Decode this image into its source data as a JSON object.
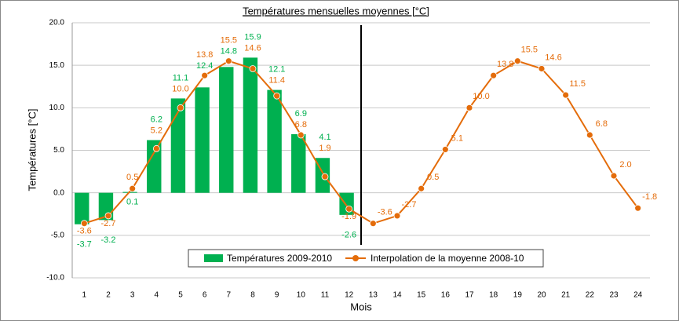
{
  "chart_data": {
    "type": "bar-line",
    "title": "Températures mensuelles moyennes [°C]",
    "y_label": "Températures [°C]",
    "x_label": "Mois",
    "categories": [
      "1",
      "2",
      "3",
      "4",
      "5",
      "6",
      "7",
      "8",
      "9",
      "10",
      "11",
      "12",
      "13",
      "14",
      "15",
      "16",
      "17",
      "18",
      "19",
      "20",
      "21",
      "22",
      "23",
      "24"
    ],
    "series": [
      {
        "name": "Températures 2009-2010",
        "type": "bar",
        "color": "#00b050",
        "values": [
          -3.7,
          -3.2,
          0.1,
          6.2,
          11.1,
          12.4,
          14.8,
          15.9,
          12.1,
          6.9,
          4.1,
          -2.6,
          null,
          null,
          null,
          null,
          null,
          null,
          null,
          null,
          null,
          null,
          null,
          null
        ],
        "value_labels": [
          "-3.7",
          "-3.2",
          "0.1",
          "6.2",
          "11.1",
          "12.4",
          "14.8",
          "15.9",
          "12.1",
          "6.9",
          "4.1",
          "-2.6",
          null,
          null,
          null,
          null,
          null,
          null,
          null,
          null,
          null,
          null,
          null,
          null
        ]
      },
      {
        "name": "Interpolation de la moyenne 2008-10",
        "type": "line",
        "color": "#e46c0a",
        "values": [
          -3.6,
          -2.7,
          0.5,
          5.2,
          10.0,
          13.8,
          15.5,
          14.6,
          11.4,
          6.8,
          1.9,
          -1.9,
          -3.6,
          -2.7,
          0.5,
          5.1,
          10.0,
          13.8,
          15.5,
          14.6,
          11.5,
          6.8,
          2.0,
          -1.8
        ],
        "value_labels": [
          "-3.6",
          "-2.7",
          "0.5",
          "5.2",
          "10.0",
          "13.8",
          "15.5",
          "14.6",
          "11.4",
          "6.8",
          "1.9",
          "-1.9",
          "-3.6",
          "-2.7",
          "0.5",
          "5.1",
          "10.0",
          "13.8",
          "15.5",
          "14.6",
          "11.5",
          "6.8",
          "2.0",
          "-1.8"
        ]
      }
    ],
    "ylim": [
      -10,
      20
    ],
    "yticks": [
      {
        "value": -10,
        "label": "-10.0"
      },
      {
        "value": -5,
        "label": "-5.0"
      },
      {
        "value": 0,
        "label": "0.0"
      },
      {
        "value": 5,
        "label": "5.0"
      },
      {
        "value": 10,
        "label": "10.0"
      },
      {
        "value": 15,
        "label": "15.0"
      },
      {
        "value": 20,
        "label": "20.0"
      }
    ],
    "grid": true,
    "legend": "bottom"
  }
}
